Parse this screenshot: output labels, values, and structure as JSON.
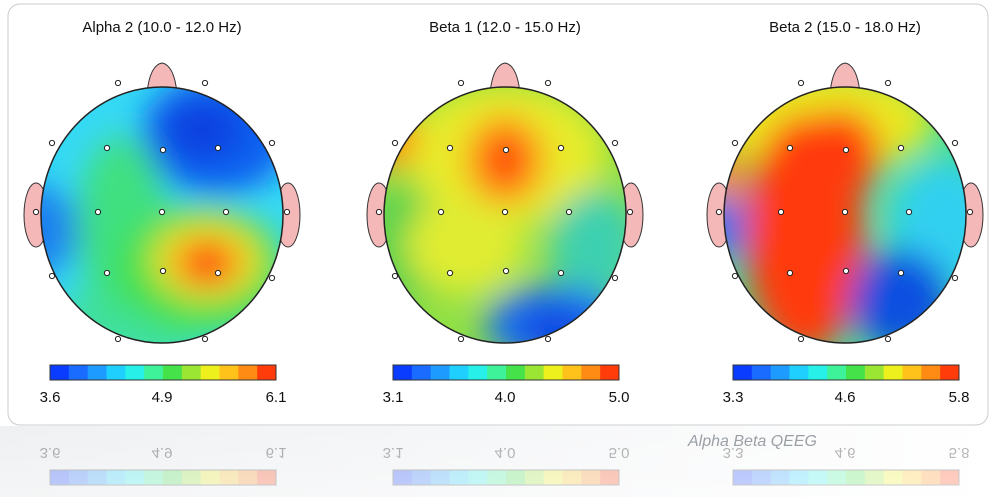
{
  "panels": [
    {
      "title": "Alpha 2 (10.0 - 12.0 Hz)",
      "scale_labels": [
        "3.6",
        "4.9",
        "6.1"
      ]
    },
    {
      "title": "Beta 1 (12.0 - 15.0 Hz)",
      "scale_labels": [
        "3.1",
        "4.0",
        "5.0"
      ]
    },
    {
      "title": "Beta 2 (15.0 - 18.0 Hz)",
      "scale_labels": [
        "3.3",
        "4.6",
        "5.8"
      ]
    }
  ],
  "caption": "Alpha Beta QEEG"
}
